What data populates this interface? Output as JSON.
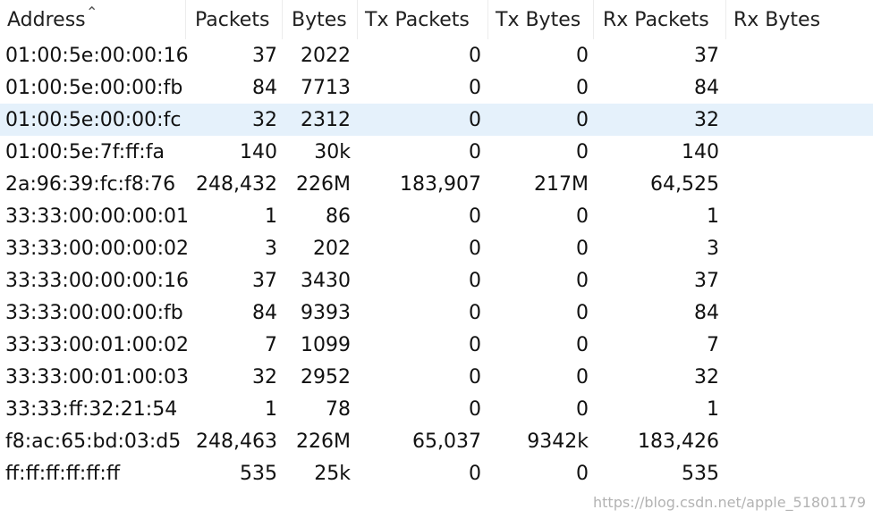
{
  "columns": [
    "Address",
    "Packets",
    "Bytes",
    "Tx Packets",
    "Tx Bytes",
    "Rx Packets",
    "Rx Bytes"
  ],
  "rows": [
    {
      "address": "01:00:5e:00:00:16",
      "packets": "37",
      "bytes": "2022",
      "tx_packets": "0",
      "tx_bytes": "0",
      "rx_packets": "37",
      "rx_bytes": ""
    },
    {
      "address": "01:00:5e:00:00:fb",
      "packets": "84",
      "bytes": "7713",
      "tx_packets": "0",
      "tx_bytes": "0",
      "rx_packets": "84",
      "rx_bytes": ""
    },
    {
      "address": "01:00:5e:00:00:fc",
      "packets": "32",
      "bytes": "2312",
      "tx_packets": "0",
      "tx_bytes": "0",
      "rx_packets": "32",
      "rx_bytes": ""
    },
    {
      "address": "01:00:5e:7f:ff:fa",
      "packets": "140",
      "bytes": "30k",
      "tx_packets": "0",
      "tx_bytes": "0",
      "rx_packets": "140",
      "rx_bytes": ""
    },
    {
      "address": "2a:96:39:fc:f8:76",
      "packets": "248,432",
      "bytes": "226M",
      "tx_packets": "183,907",
      "tx_bytes": "217M",
      "rx_packets": "64,525",
      "rx_bytes": ""
    },
    {
      "address": "33:33:00:00:00:01",
      "packets": "1",
      "bytes": "86",
      "tx_packets": "0",
      "tx_bytes": "0",
      "rx_packets": "1",
      "rx_bytes": ""
    },
    {
      "address": "33:33:00:00:00:02",
      "packets": "3",
      "bytes": "202",
      "tx_packets": "0",
      "tx_bytes": "0",
      "rx_packets": "3",
      "rx_bytes": ""
    },
    {
      "address": "33:33:00:00:00:16",
      "packets": "37",
      "bytes": "3430",
      "tx_packets": "0",
      "tx_bytes": "0",
      "rx_packets": "37",
      "rx_bytes": ""
    },
    {
      "address": "33:33:00:00:00:fb",
      "packets": "84",
      "bytes": "9393",
      "tx_packets": "0",
      "tx_bytes": "0",
      "rx_packets": "84",
      "rx_bytes": ""
    },
    {
      "address": "33:33:00:01:00:02",
      "packets": "7",
      "bytes": "1099",
      "tx_packets": "0",
      "tx_bytes": "0",
      "rx_packets": "7",
      "rx_bytes": ""
    },
    {
      "address": "33:33:00:01:00:03",
      "packets": "32",
      "bytes": "2952",
      "tx_packets": "0",
      "tx_bytes": "0",
      "rx_packets": "32",
      "rx_bytes": ""
    },
    {
      "address": "33:33:ff:32:21:54",
      "packets": "1",
      "bytes": "78",
      "tx_packets": "0",
      "tx_bytes": "0",
      "rx_packets": "1",
      "rx_bytes": ""
    },
    {
      "address": "f8:ac:65:bd:03:d5",
      "packets": "248,463",
      "bytes": "226M",
      "tx_packets": "65,037",
      "tx_bytes": "9342k",
      "rx_packets": "183,426",
      "rx_bytes": ""
    },
    {
      "address": "ff:ff:ff:ff:ff:ff",
      "packets": "535",
      "bytes": "25k",
      "tx_packets": "0",
      "tx_bytes": "0",
      "rx_packets": "535",
      "rx_bytes": ""
    }
  ],
  "selected_row": 2,
  "sort_indicator": "chevron-up-icon",
  "watermark": "https://blog.csdn.net/apple_51801179",
  "colors": {
    "selection": "#e5f1fb",
    "watermark": "#b3b3b3"
  }
}
